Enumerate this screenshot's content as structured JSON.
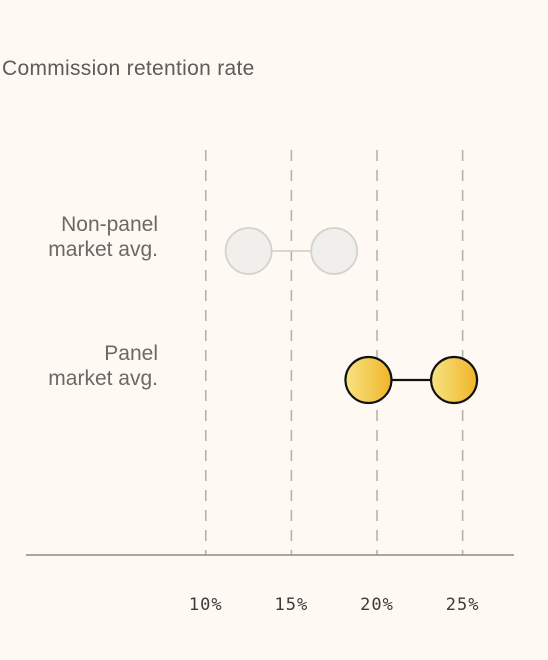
{
  "chart_data": {
    "type": "dumbbell",
    "title": "Commission retention rate",
    "xlabel": "",
    "ylabel": "",
    "xlim": [
      -0.5,
      28
    ],
    "x_ticks": [
      10,
      15,
      20,
      25
    ],
    "x_tick_labels": [
      "10%",
      "15%",
      "20%",
      "25%"
    ],
    "grid": true,
    "series": [
      {
        "label_lines": [
          "Non-panel",
          "market avg."
        ],
        "low": 12.5,
        "high": 17.5,
        "style": "muted",
        "colors": {
          "fill": "#f1efeb",
          "stroke": "#d4d2cd",
          "line": "#d4d2cd"
        }
      },
      {
        "label_lines": [
          "Panel",
          "market avg."
        ],
        "low": 19.5,
        "high": 24.5,
        "style": "highlight",
        "colors": {
          "fill_start": "#f7e483",
          "fill_end": "#f0b428",
          "stroke": "#111111",
          "line": "#111111"
        }
      }
    ]
  }
}
